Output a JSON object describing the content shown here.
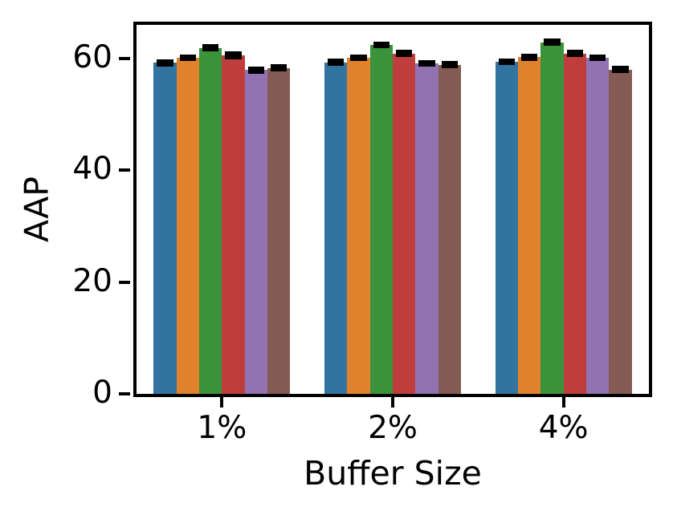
{
  "figure": {
    "background_color": "#ffffff",
    "spine_color": "#000000"
  },
  "chart_data": {
    "type": "bar",
    "title": "",
    "xlabel": "Buffer Size",
    "ylabel": "AAP",
    "categories": [
      "1%",
      "2%",
      "4%"
    ],
    "series": [
      {
        "color": "#3274a1",
        "values": [
          59.2,
          59.3,
          59.4
        ],
        "errors": [
          0.4,
          0.4,
          0.4
        ]
      },
      {
        "color": "#e1812c",
        "values": [
          60.1,
          60.1,
          60.2
        ],
        "errors": [
          0.4,
          0.4,
          0.4
        ]
      },
      {
        "color": "#3a923a",
        "values": [
          61.9,
          62.4,
          62.9
        ],
        "errors": [
          0.4,
          0.4,
          0.4
        ]
      },
      {
        "color": "#c03d3e",
        "values": [
          60.6,
          60.9,
          60.9
        ],
        "errors": [
          0.5,
          0.4,
          0.4
        ]
      },
      {
        "color": "#9372b2",
        "values": [
          57.9,
          59.1,
          60.1
        ],
        "errors": [
          0.4,
          0.4,
          0.4
        ]
      },
      {
        "color": "#845b53",
        "values": [
          58.3,
          58.9,
          58.0
        ],
        "errors": [
          0.4,
          0.4,
          0.4
        ]
      }
    ],
    "error_bar_color": "#000000",
    "yticks": [
      "0",
      "20",
      "40",
      "60"
    ],
    "ytick_values": [
      0,
      20,
      40,
      60
    ],
    "ylim": [
      0,
      66
    ],
    "grid": false,
    "legend": "none",
    "group_width_fraction": 0.8
  }
}
